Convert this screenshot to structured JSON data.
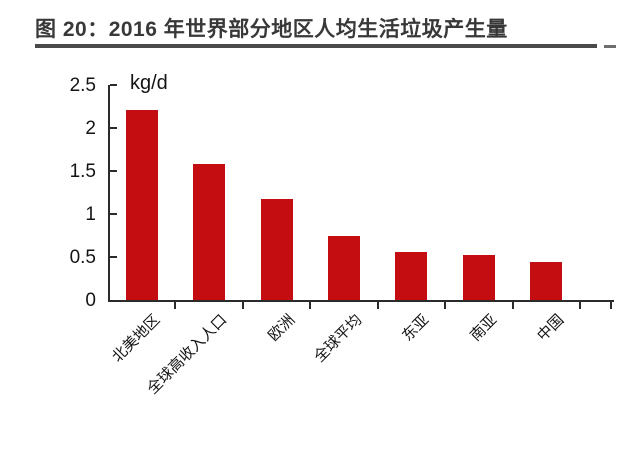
{
  "figure": {
    "title": "图 20：2016 年世界部分地区人均生活垃圾产生量"
  },
  "chart_data": {
    "type": "bar",
    "title": "2016 年世界部分地区人均生活垃圾产生量",
    "unit_label": "kg/d",
    "categories": [
      "北美地区",
      "全球高收入人口",
      "欧洲",
      "全球平均",
      "东亚",
      "南亚",
      "中国"
    ],
    "values": [
      2.21,
      1.58,
      1.17,
      0.74,
      0.56,
      0.52,
      0.44
    ],
    "xlabel": "",
    "ylabel": "kg/d",
    "ylim": [
      0,
      2.5
    ],
    "yticks": [
      0,
      0.5,
      1,
      1.5,
      2,
      2.5
    ],
    "grid": false,
    "legend": "none",
    "bar_color": "#C40D10",
    "axis_color": "#2B2B2B",
    "title_text_color": "#383838",
    "title_rule_color": "#4A4A4A"
  }
}
